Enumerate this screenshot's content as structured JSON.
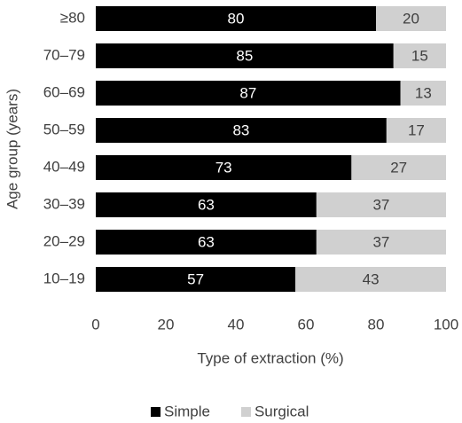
{
  "chart_data": {
    "type": "bar",
    "orientation": "horizontal",
    "stacked": true,
    "categories": [
      "≥80",
      "70–79",
      "60–69",
      "50–59",
      "40–49",
      "30–39",
      "20–29",
      "10–19"
    ],
    "series": [
      {
        "name": "Simple",
        "color": "#000000",
        "label_color": "#ffffff",
        "values": [
          80,
          85,
          87,
          83,
          73,
          63,
          63,
          57
        ]
      },
      {
        "name": "Surgical",
        "color": "#d0d0d0",
        "label_color": "#404040",
        "values": [
          20,
          15,
          13,
          17,
          27,
          37,
          37,
          43
        ]
      }
    ],
    "xlabel": "Type of extraction (%)",
    "ylabel": "Age group (years)",
    "xlim": [
      0,
      100
    ],
    "xticks": [
      0,
      20,
      40,
      60,
      80,
      100
    ],
    "grid": false,
    "legend": "bottom"
  }
}
